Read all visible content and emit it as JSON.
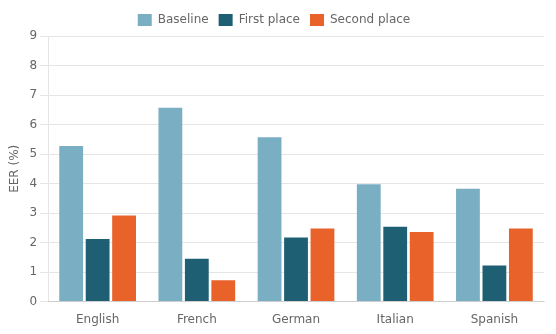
{
  "chart_data": {
    "type": "bar",
    "categories": [
      "English",
      "French",
      "German",
      "Italian",
      "Spanish"
    ],
    "series": [
      {
        "name": "Baseline",
        "color": "#7aaec3",
        "values": [
          5.27,
          6.57,
          5.57,
          3.98,
          3.82
        ]
      },
      {
        "name": "First place",
        "color": "#1f5f73",
        "values": [
          2.12,
          1.45,
          2.17,
          2.54,
          1.22
        ]
      },
      {
        "name": "Second place",
        "color": "#e8622a",
        "values": [
          2.92,
          0.72,
          2.48,
          2.36,
          2.48
        ]
      }
    ],
    "ylabel": "EER (%)",
    "ylim": [
      0,
      9
    ],
    "yticks": [
      0,
      1,
      2,
      3,
      4,
      5,
      6,
      7,
      8,
      9
    ],
    "grid": true,
    "legend": "top"
  }
}
